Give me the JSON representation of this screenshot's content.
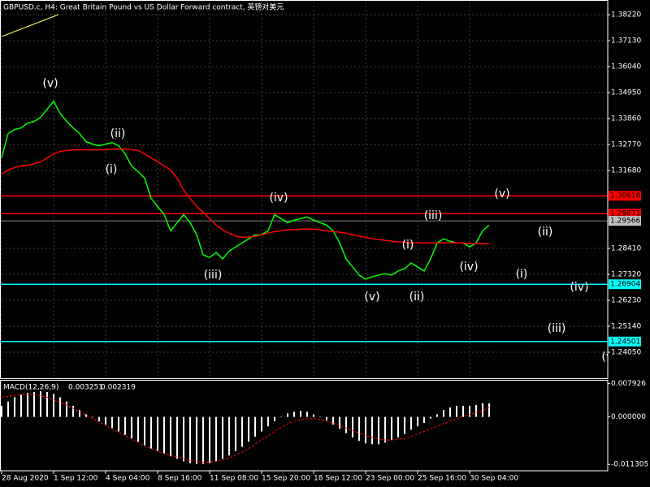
{
  "chart_data": [
    {
      "type": "line",
      "title": "GBPUSD.c, H4:  Great Britain Pound vs US Dollar Forward contract, 英镑对美元",
      "categories": [
        "28 Aug 2020",
        null,
        null,
        null,
        null,
        null,
        null,
        null,
        "1 Sep 12:00",
        null,
        null,
        null,
        null,
        null,
        null,
        null,
        "4 Sep 04:00",
        null,
        null,
        null,
        null,
        null,
        null,
        null,
        "8 Sep 16:00",
        null,
        null,
        null,
        null,
        null,
        null,
        null,
        "11 Sep 08:00",
        null,
        null,
        null,
        null,
        null,
        null,
        null,
        "15 Sep 20:00",
        null,
        null,
        null,
        null,
        null,
        null,
        null,
        "18 Sep 12:00",
        null,
        null,
        null,
        null,
        null,
        null,
        null,
        "23 Sep 00:00",
        null,
        null,
        null,
        null,
        null,
        null,
        null,
        "25 Sep 16:00",
        null,
        null,
        null,
        null,
        null,
        null,
        null,
        "30 Sep 04:00",
        null,
        null,
        null
      ],
      "series": [
        {
          "color": "#00ff00",
          "values": [
            1.3221,
            1.3323,
            1.334,
            1.3347,
            1.3367,
            1.3374,
            1.3391,
            1.3425,
            1.3459,
            1.3408,
            1.3374,
            1.3347,
            1.3323,
            1.3289,
            1.3279,
            1.3272,
            1.3279,
            1.3285,
            1.3272,
            1.3238,
            1.3187,
            1.3163,
            1.3136,
            1.3051,
            1.3017,
            1.2983,
            1.2915,
            1.2949,
            1.2983,
            1.2949,
            1.2898,
            1.2814,
            1.2803,
            1.2824,
            1.2797,
            1.283,
            1.2847,
            1.2864,
            1.2881,
            1.2898,
            1.2898,
            1.2915,
            1.2983,
            1.2966,
            1.2949,
            1.296,
            1.2966,
            1.2973,
            1.296,
            1.2949,
            1.2939,
            1.2915,
            1.2864,
            1.2797,
            1.2763,
            1.2729,
            1.2712,
            1.2722,
            1.2729,
            1.2735,
            1.2729,
            1.2746,
            1.2756,
            1.278,
            1.2763,
            1.2746,
            1.2797,
            1.2864,
            1.2881,
            1.2871,
            1.2864,
            1.2864,
            1.2847,
            1.2864,
            1.2915,
            1.2939
          ]
        },
        {
          "color": "#ff0000",
          "values": [
            1.3153,
            1.317,
            1.318,
            1.3187,
            1.319,
            1.3197,
            1.3204,
            1.3221,
            1.3238,
            1.3248,
            1.3252,
            1.3255,
            1.3255,
            1.3255,
            1.3255,
            1.3255,
            1.3255,
            1.3258,
            1.3258,
            1.3258,
            1.3255,
            1.3252,
            1.3238,
            1.3221,
            1.3204,
            1.3187,
            1.317,
            1.3136,
            1.3085,
            1.3051,
            1.3017,
            1.2993,
            1.2966,
            1.2939,
            1.2919,
            1.2905,
            1.2892,
            1.2888,
            1.2888,
            1.2892,
            1.2898,
            1.2905,
            1.2912,
            1.2915,
            1.2919,
            1.2919,
            1.2922,
            1.2922,
            1.2922,
            1.2919,
            1.2915,
            1.2912,
            1.2909,
            1.2905,
            1.2898,
            1.2892,
            1.2888,
            1.2881,
            1.2878,
            1.2875,
            1.2871,
            1.2868,
            1.2868,
            1.2864,
            1.2864,
            1.2864,
            1.2864,
            1.2864,
            1.2864,
            1.2864,
            1.2864,
            1.2864,
            1.2861,
            1.2861,
            1.2861,
            1.2861
          ]
        }
      ],
      "levels": [
        {
          "value": 1.30618,
          "color": "#ff0000"
        },
        {
          "value": 1.29871,
          "color": "#ff0000"
        },
        {
          "value": 1.26904,
          "color": "#00ffff"
        },
        {
          "value": 1.24501,
          "color": "#00ffff"
        }
      ],
      "last_price": 1.29566,
      "annotations": [
        "(v)",
        "(ii)",
        "(i)",
        "(iv)",
        "(iii)",
        "(v)",
        "(i)",
        "(ii)",
        "(iii)",
        "(iv)",
        "(v)",
        "(ii)",
        "(i)",
        "(iv)",
        "(iii)",
        "(v)"
      ],
      "ylim": [
        1.2296,
        1.3877
      ],
      "yticks": [
        {
          "value": 1.3822,
          "label": "1.38220"
        },
        {
          "value": 1.3713,
          "label": "1.37130"
        },
        {
          "value": 1.3604,
          "label": "1.36040"
        },
        {
          "value": 1.3495,
          "label": "1.34950"
        },
        {
          "value": 1.3386,
          "label": "1.33860"
        },
        {
          "value": 1.3277,
          "label": "1.32770"
        },
        {
          "value": 1.3168,
          "label": "1.31680"
        },
        {
          "value": 1.2841,
          "label": "1.28410"
        },
        {
          "value": 1.2732,
          "label": "1.27320"
        },
        {
          "value": 1.2623,
          "label": "1.26230"
        },
        {
          "value": 1.2514,
          "label": "1.25140"
        },
        {
          "value": 1.2405,
          "label": "1.24050"
        }
      ],
      "grid": true
    },
    {
      "type": "bar",
      "title": "MACD(12,26,9)",
      "series": [
        {
          "color": "#ffffff",
          "values": [
            0.002642,
            0.003659,
            0.004675,
            0.005285,
            0.005691,
            0.005894,
            0.006098,
            0.005894,
            0.005488,
            0.004675,
            0.003659,
            0.002642,
            0.001626,
            0.00061,
            0,
            -0.001016,
            -0.001829,
            -0.002642,
            -0.003455,
            -0.004268,
            -0.005081,
            -0.005894,
            -0.006707,
            -0.00752,
            -0.00813,
            -0.00874,
            -0.00935,
            -0.009959,
            -0.010569,
            -0.010976,
            -0.011179,
            -0.011179,
            -0.010976,
            -0.010569,
            -0.009959,
            -0.009146,
            -0.00813,
            -0.007114,
            -0.005894,
            -0.004675,
            -0.003455,
            -0.002236,
            -0.001016,
            0,
            0.000813,
            0.00122,
            0.001423,
            0.00122,
            0.00061,
            0,
            -0.000813,
            -0.001829,
            -0.002846,
            -0.003862,
            -0.004878,
            -0.005691,
            -0.006301,
            -0.006504,
            -0.006504,
            -0.006098,
            -0.005488,
            -0.004878,
            -0.004065,
            -0.003049,
            -0.002236,
            -0.001423,
            -0.000407,
            0.00061,
            0.001626,
            0.002236,
            0.002642,
            0.002642,
            0.002642,
            0.002846,
            0.003252,
            0.003251
          ]
        },
        {
          "color": "#ff0000",
          "values": [
            0.004675,
            0.004878,
            0.005081,
            0.005285,
            0.005285,
            0.005285,
            0.005081,
            0.004675,
            0.004065,
            0.003455,
            0.002846,
            0.002033,
            0.00122,
            0.000407,
            -0.000407,
            -0.00122,
            -0.002033,
            -0.002846,
            -0.003659,
            -0.004472,
            -0.005285,
            -0.006098,
            -0.006911,
            -0.00752,
            -0.00813,
            -0.00874,
            -0.009146,
            -0.009553,
            -0.009959,
            -0.010366,
            -0.010569,
            -0.010772,
            -0.010772,
            -0.010569,
            -0.010163,
            -0.009756,
            -0.009146,
            -0.008333,
            -0.00752,
            -0.006504,
            -0.005488,
            -0.004472,
            -0.003455,
            -0.002439,
            -0.001626,
            -0.001016,
            -0.00061,
            -0.000407,
            -0.000407,
            -0.00061,
            -0.001016,
            -0.001423,
            -0.002033,
            -0.002642,
            -0.003252,
            -0.003862,
            -0.004472,
            -0.004878,
            -0.005285,
            -0.005488,
            -0.005488,
            -0.005285,
            -0.005081,
            -0.004675,
            -0.004065,
            -0.003455,
            -0.002846,
            -0.002236,
            -0.001626,
            -0.001016,
            -0.000407,
            0.000203,
            0.00061,
            0.001016,
            0.001423,
            0.002319
          ]
        }
      ],
      "ylim": [
        -0.0128,
        0.0088
      ],
      "yticks": [
        0.007926,
        {
          "value": 0,
          "label": "0.000000"
        },
        -0.011305
      ],
      "grid": false
    }
  ]
}
